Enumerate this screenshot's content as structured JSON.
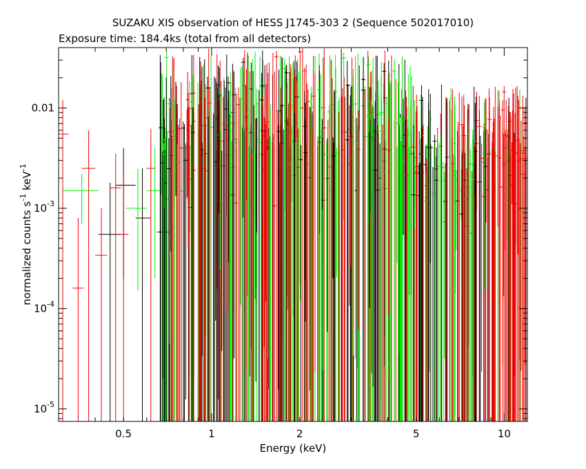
{
  "chart_data": {
    "type": "scatter",
    "title": "SUZAKU XIS observation of HESS J1745-303 2 (Sequence 502017010)",
    "subtitle": "Exposure time: 184.4ks (total from all detectors)",
    "xlabel": "Energy (keV)",
    "ylabel": {
      "base": "normalized counts s",
      "sup1": "-1",
      "mid": " keV",
      "sup2": "-1"
    },
    "x_scale": "log",
    "y_scale": "log",
    "xlim": [
      0.3,
      12
    ],
    "ylim": [
      7.5e-06,
      0.04
    ],
    "x_ticks": [
      {
        "value": 0.5,
        "label": "0.5"
      },
      {
        "value": 1,
        "label": "1"
      },
      {
        "value": 2,
        "label": "2"
      },
      {
        "value": 5,
        "label": "5"
      },
      {
        "value": 10,
        "label": "10"
      }
    ],
    "y_ticks": [
      {
        "value": 1e-05,
        "base": "10",
        "sup": "-5",
        "label": ""
      },
      {
        "value": 0.0001,
        "base": "10",
        "sup": "-4",
        "label": ""
      },
      {
        "value": 0.001,
        "base": "10",
        "sup": "-3",
        "label": ""
      },
      {
        "value": 0.01,
        "base": "",
        "sup": "",
        "label": "0.01"
      }
    ],
    "grid": false,
    "legend": "none",
    "series": [
      {
        "color": "#000000",
        "points": [
          {
            "x": 0.45,
            "xlo": 0.41,
            "xhi": 0.49,
            "y": 0.00055,
            "ylo": 7.5e-06,
            "yhi": 0.0018
          },
          {
            "x": 0.5,
            "xlo": 0.47,
            "xhi": 0.55,
            "y": 0.0017,
            "ylo": 0.0002,
            "yhi": 0.004
          },
          {
            "x": 0.58,
            "xlo": 0.55,
            "xhi": 0.62,
            "y": 0.0008,
            "ylo": 7.5e-06,
            "yhi": 0.0025
          },
          {
            "x": 0.68,
            "xlo": 0.65,
            "xhi": 0.72,
            "y": 0.00058,
            "ylo": 7.5e-06,
            "yhi": 0.002
          }
        ]
      },
      {
        "color": "#00ee00",
        "points": [
          {
            "x": 0.36,
            "xlo": 0.31,
            "xhi": 0.41,
            "y": 0.0015,
            "ylo": 0.0007,
            "yhi": 0.0022
          },
          {
            "x": 0.56,
            "xlo": 0.51,
            "xhi": 0.6,
            "y": 0.001,
            "ylo": 0.00015,
            "yhi": 0.0025
          },
          {
            "x": 0.64,
            "xlo": 0.6,
            "xhi": 0.68,
            "y": 0.0015,
            "ylo": 0.0002,
            "yhi": 0.004
          }
        ]
      },
      {
        "color": "#ee0000",
        "points": [
          {
            "x": 0.31,
            "xlo": 0.3,
            "xhi": 0.325,
            "y": 0.0055,
            "ylo": 7.5e-06,
            "yhi": 0.012
          },
          {
            "x": 0.35,
            "xlo": 0.335,
            "xhi": 0.365,
            "y": 0.00016,
            "ylo": 7.5e-06,
            "yhi": 0.0008
          },
          {
            "x": 0.38,
            "xlo": 0.36,
            "xhi": 0.4,
            "y": 0.0025,
            "ylo": 7.5e-06,
            "yhi": 0.006
          },
          {
            "x": 0.42,
            "xlo": 0.4,
            "xhi": 0.44,
            "y": 0.00034,
            "ylo": 7.5e-06,
            "yhi": 0.001
          },
          {
            "x": 0.47,
            "xlo": 0.45,
            "xhi": 0.49,
            "y": 0.0016,
            "ylo": 7.5e-06,
            "yhi": 0.0035
          },
          {
            "x": 0.5,
            "xlo": 0.48,
            "xhi": 0.52,
            "y": 0.00055,
            "ylo": 7.5e-06,
            "yhi": 0.0022
          },
          {
            "x": 0.62,
            "xlo": 0.6,
            "xhi": 0.64,
            "y": 0.0025,
            "ylo": 7.5e-06,
            "yhi": 0.0062
          },
          {
            "x": 0.72,
            "xlo": 0.7,
            "xhi": 0.74,
            "y": 0.0058,
            "ylo": 7.5e-06,
            "yhi": 0.01
          }
        ]
      }
    ]
  }
}
